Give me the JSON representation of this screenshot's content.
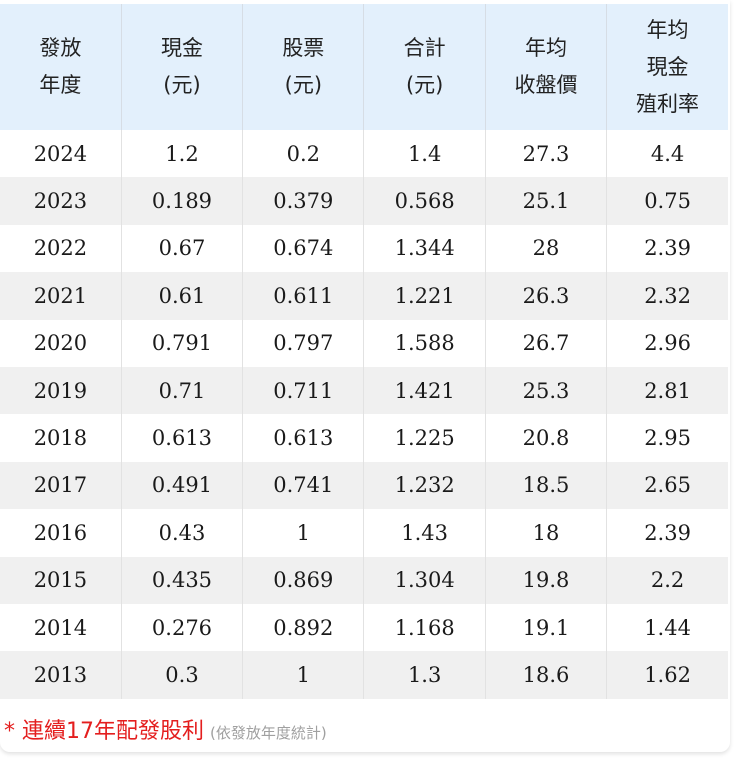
{
  "table": {
    "headers": [
      {
        "line1": "發放",
        "line2": "年度",
        "line3": ""
      },
      {
        "line1": "現金",
        "line2": "(元)",
        "line3": ""
      },
      {
        "line1": "股票",
        "line2": "(元)",
        "line3": ""
      },
      {
        "line1": "合計",
        "line2": "(元)",
        "line3": ""
      },
      {
        "line1": "年均",
        "line2": "收盤價",
        "line3": ""
      },
      {
        "line1": "年均",
        "line2": "現金",
        "line3": "殖利率"
      }
    ],
    "rows": [
      [
        "2024",
        "1.2",
        "0.2",
        "1.4",
        "27.3",
        "4.4"
      ],
      [
        "2023",
        "0.189",
        "0.379",
        "0.568",
        "25.1",
        "0.75"
      ],
      [
        "2022",
        "0.67",
        "0.674",
        "1.344",
        "28",
        "2.39"
      ],
      [
        "2021",
        "0.61",
        "0.611",
        "1.221",
        "26.3",
        "2.32"
      ],
      [
        "2020",
        "0.791",
        "0.797",
        "1.588",
        "26.7",
        "2.96"
      ],
      [
        "2019",
        "0.71",
        "0.711",
        "1.421",
        "25.3",
        "2.81"
      ],
      [
        "2018",
        "0.613",
        "0.613",
        "1.225",
        "20.8",
        "2.95"
      ],
      [
        "2017",
        "0.491",
        "0.741",
        "1.232",
        "18.5",
        "2.65"
      ],
      [
        "2016",
        "0.43",
        "1",
        "1.43",
        "18",
        "2.39"
      ],
      [
        "2015",
        "0.435",
        "0.869",
        "1.304",
        "19.8",
        "2.2"
      ],
      [
        "2014",
        "0.276",
        "0.892",
        "1.168",
        "19.1",
        "1.44"
      ],
      [
        "2013",
        "0.3",
        "1",
        "1.3",
        "18.6",
        "1.62"
      ]
    ]
  },
  "footnote": {
    "main": "* 連續17年配發股利",
    "sub": "(依發放年度統計)"
  },
  "colors": {
    "header_bg": "#e3f0fc",
    "alt_row_bg": "#f0f0f0",
    "note_red": "#e41e1e",
    "note_gray": "#a0a0a0"
  }
}
